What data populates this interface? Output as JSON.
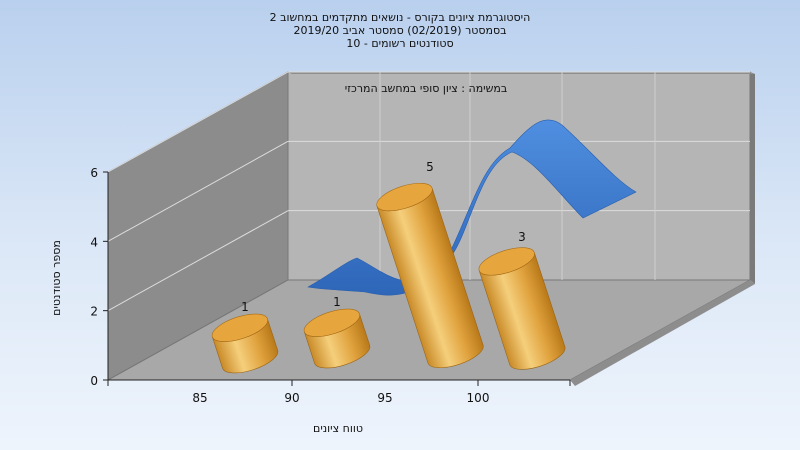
{
  "chart_data": {
    "type": "bar",
    "title_lines": [
      "היסטוגרמת ציונים בקורס - נושאים מתקדמים במחשוב 2",
      "בסמסטר  (02/2019)  סמסטר אביב 2019/20",
      "סטודנטים רשומים - 10"
    ],
    "subtitle": "במשימה : ציון סופי במחשב המרכזי",
    "xlabel": "טווח ציונים",
    "ylabel": "מספר סטודנטים",
    "categories": [
      "85",
      "90",
      "95",
      "100"
    ],
    "values": [
      1,
      1,
      5,
      3
    ],
    "data_labels": [
      "1",
      "1",
      "5",
      "3"
    ],
    "y_ticks": [
      "0",
      "2",
      "4",
      "6"
    ],
    "ylim": [
      0,
      6
    ],
    "grid": true,
    "colors": {
      "bar": "#e3a235",
      "bar_light": "#f4cf7a",
      "bar_dark": "#c27f1c",
      "curve": "#3a77cc",
      "back_wall": "#b5b5b5",
      "side_wall": "#8a8a8a",
      "floor": "#a9a9a9"
    }
  }
}
